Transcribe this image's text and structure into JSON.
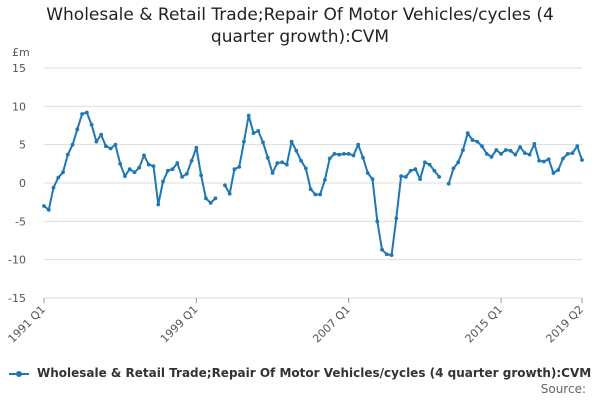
{
  "chart_data": {
    "type": "line",
    "title_line1": "Wholesale & Retail Trade;Repair Of Motor Vehicles/cycles (4",
    "title_line2": "quarter growth):CVM",
    "unit": "£m",
    "ylim": [
      -15,
      15
    ],
    "yticks": [
      15,
      10,
      5,
      0,
      -5,
      -10,
      -15
    ],
    "xticks": [
      {
        "label": "1991 Q1",
        "index": 0
      },
      {
        "label": "1999 Q1",
        "index": 32
      },
      {
        "label": "2007 Q1",
        "index": 64
      },
      {
        "label": "2015 Q1",
        "index": 96
      },
      {
        "label": "2019 Q2",
        "index": 113
      }
    ],
    "grid": true,
    "legend_position": "bottom",
    "color": "#1f77b4",
    "series": [
      {
        "name": "Wholesale & Retail Trade;Repair Of Motor Vehicles/cycles (4 quarter growth):CVM",
        "start": "1991 Q1",
        "values": [
          -3.0,
          -3.5,
          -0.6,
          0.7,
          1.4,
          3.7,
          5.0,
          7.0,
          9.0,
          9.2,
          7.6,
          5.4,
          6.3,
          4.8,
          4.5,
          5.0,
          2.5,
          0.9,
          1.8,
          1.4,
          2.0,
          3.6,
          2.4,
          2.2,
          -2.8,
          0.2,
          1.6,
          1.8,
          2.6,
          0.8,
          1.2,
          2.9,
          4.6,
          1.0,
          -2.0,
          -2.6,
          -2.0,
          null,
          -0.3,
          -1.4,
          1.8,
          2.1,
          5.4,
          8.8,
          6.5,
          6.8,
          5.3,
          3.3,
          1.3,
          2.6,
          2.7,
          2.4,
          5.4,
          4.2,
          2.9,
          1.9,
          -0.8,
          -1.5,
          -1.5,
          0.4,
          3.2,
          3.8,
          3.7,
          3.8,
          3.8,
          3.6,
          5.0,
          3.3,
          1.3,
          0.5,
          -5.0,
          -8.7,
          -9.3,
          -9.4,
          -4.6,
          0.9,
          0.8,
          1.6,
          1.8,
          0.5,
          2.7,
          2.4,
          1.6,
          0.8,
          null,
          -0.1,
          1.9,
          2.7,
          4.3,
          6.5,
          5.6,
          5.4,
          4.8,
          3.8,
          3.4,
          4.3,
          3.8,
          4.3,
          4.2,
          3.7,
          4.7,
          3.9,
          3.7,
          5.1,
          2.9,
          2.8,
          3.1,
          1.3,
          1.7,
          3.2,
          3.8,
          3.9,
          4.8,
          3.0
        ]
      }
    ]
  },
  "legend": {
    "label": "Wholesale & Retail Trade;Repair Of Motor Vehicles/cycles (4 quarter growth):CVM"
  },
  "footer": {
    "source_label": "Source:"
  }
}
